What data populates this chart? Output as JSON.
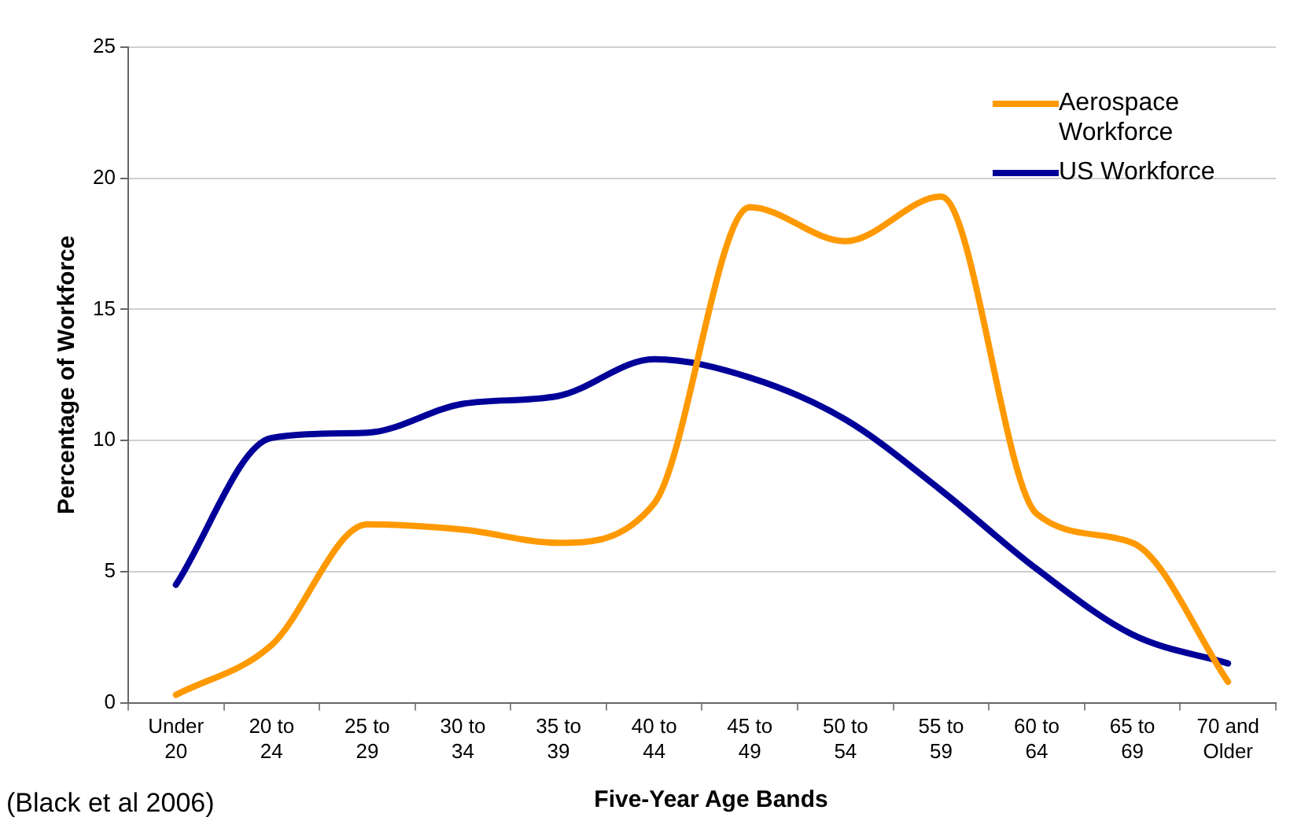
{
  "chart_data": {
    "type": "line",
    "xlabel": "Five-Year Age Bands",
    "ylabel": "Percentage of Workforce",
    "categories": [
      "Under 20",
      "20 to 24",
      "25 to 29",
      "30 to 34",
      "35 to 39",
      "40 to 44",
      "45 to 49",
      "50 to 54",
      "55 to 59",
      "60 to 64",
      "65 to 69",
      "70 and Older"
    ],
    "series": [
      {
        "name": "Aerospace Workforce",
        "color": "#ff9900",
        "values": [
          0.3,
          2.2,
          6.8,
          6.6,
          6.1,
          7.6,
          18.9,
          17.6,
          19.3,
          7.2,
          6.1,
          0.8
        ]
      },
      {
        "name": "US Workforce",
        "color": "#000099",
        "values": [
          4.5,
          10.1,
          10.3,
          11.4,
          11.7,
          13.1,
          12.4,
          10.8,
          8.1,
          5.1,
          2.6,
          1.5
        ]
      }
    ],
    "ylim": [
      0,
      25
    ],
    "yticks": [
      0,
      5,
      10,
      15,
      20,
      25
    ],
    "grid": "y",
    "legend": "top right",
    "marker": "none",
    "line_style": "solid",
    "annotations": [
      "(Black et al 2006)"
    ]
  }
}
